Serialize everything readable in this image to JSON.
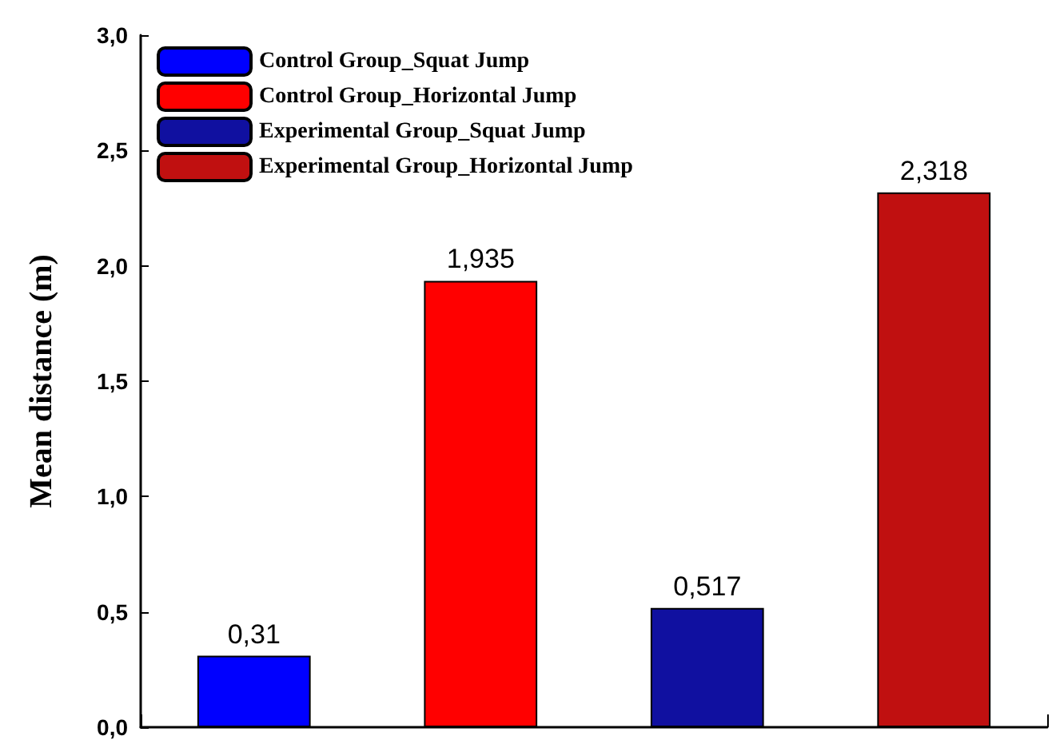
{
  "chart_data": {
    "type": "bar",
    "ylabel": "Mean distance (m)",
    "categories": [
      null,
      null,
      null,
      null
    ],
    "series": [
      {
        "name": "Control Group_Squat Jump",
        "color": "#0000ff",
        "values": [
          0.31,
          null,
          null,
          null
        ],
        "value_labels": [
          "0,31",
          null,
          null,
          null
        ]
      },
      {
        "name": "Control Group_Horizontal Jump",
        "color": "#ff0000",
        "values": [
          null,
          1.935,
          null,
          null
        ],
        "value_labels": [
          null,
          "1,935",
          null,
          null
        ]
      },
      {
        "name": "Experimental Group_Squat Jump",
        "color": "#1010a0",
        "values": [
          null,
          null,
          0.517,
          null
        ],
        "value_labels": [
          null,
          null,
          "0,517",
          null
        ]
      },
      {
        "name": "Experimental Group_Horizontal Jump",
        "color": "#c01010",
        "values": [
          null,
          null,
          null,
          2.318
        ],
        "value_labels": [
          null,
          null,
          null,
          "2,318"
        ]
      }
    ],
    "ylim": [
      0,
      3
    ],
    "yticks": [
      {
        "value": 0,
        "label": "0,0"
      },
      {
        "value": 0.5,
        "label": "0,5"
      },
      {
        "value": 1,
        "label": "1,0"
      },
      {
        "value": 1.5,
        "label": "1,5"
      },
      {
        "value": 2,
        "label": "2,0"
      },
      {
        "value": 2.5,
        "label": "2,5"
      },
      {
        "value": 3,
        "label": "3,0"
      }
    ],
    "grid": false,
    "legend": "top left"
  }
}
